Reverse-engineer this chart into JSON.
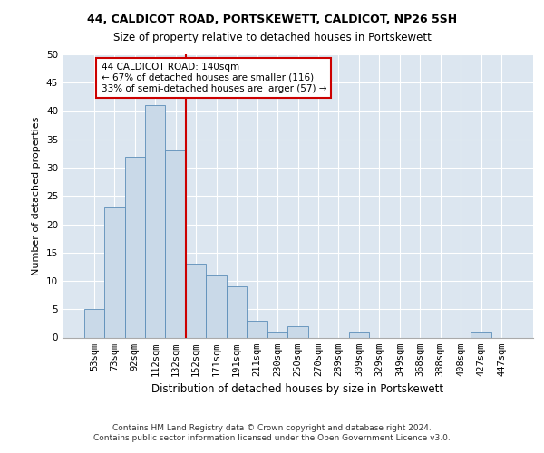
{
  "title1": "44, CALDICOT ROAD, PORTSKEWETT, CALDICOT, NP26 5SH",
  "title2": "Size of property relative to detached houses in Portskewett",
  "xlabel": "Distribution of detached houses by size in Portskewett",
  "ylabel": "Number of detached properties",
  "categories": [
    "53sqm",
    "73sqm",
    "92sqm",
    "112sqm",
    "132sqm",
    "152sqm",
    "171sqm",
    "191sqm",
    "211sqm",
    "230sqm",
    "250sqm",
    "270sqm",
    "289sqm",
    "309sqm",
    "329sqm",
    "349sqm",
    "368sqm",
    "388sqm",
    "408sqm",
    "427sqm",
    "447sqm"
  ],
  "values": [
    5,
    23,
    32,
    41,
    33,
    13,
    11,
    9,
    3,
    1,
    2,
    0,
    0,
    1,
    0,
    0,
    0,
    0,
    0,
    1,
    0
  ],
  "bar_color": "#c9d9e8",
  "bar_edge_color": "#5b8db8",
  "background_color": "#dce6f0",
  "annotation_box_text": "44 CALDICOT ROAD: 140sqm\n← 67% of detached houses are smaller (116)\n33% of semi-detached houses are larger (57) →",
  "annotation_box_color": "#ffffff",
  "annotation_box_edge_color": "#cc0000",
  "vline_color": "#cc0000",
  "ylim": [
    0,
    50
  ],
  "yticks": [
    0,
    5,
    10,
    15,
    20,
    25,
    30,
    35,
    40,
    45,
    50
  ],
  "footer1": "Contains HM Land Registry data © Crown copyright and database right 2024.",
  "footer2": "Contains public sector information licensed under the Open Government Licence v3.0.",
  "title_fontsize": 9,
  "subtitle_fontsize": 8.5,
  "xlabel_fontsize": 8.5,
  "ylabel_fontsize": 8,
  "tick_label_fontsize": 7.5,
  "annotation_fontsize": 7.5,
  "footer_fontsize": 6.5
}
